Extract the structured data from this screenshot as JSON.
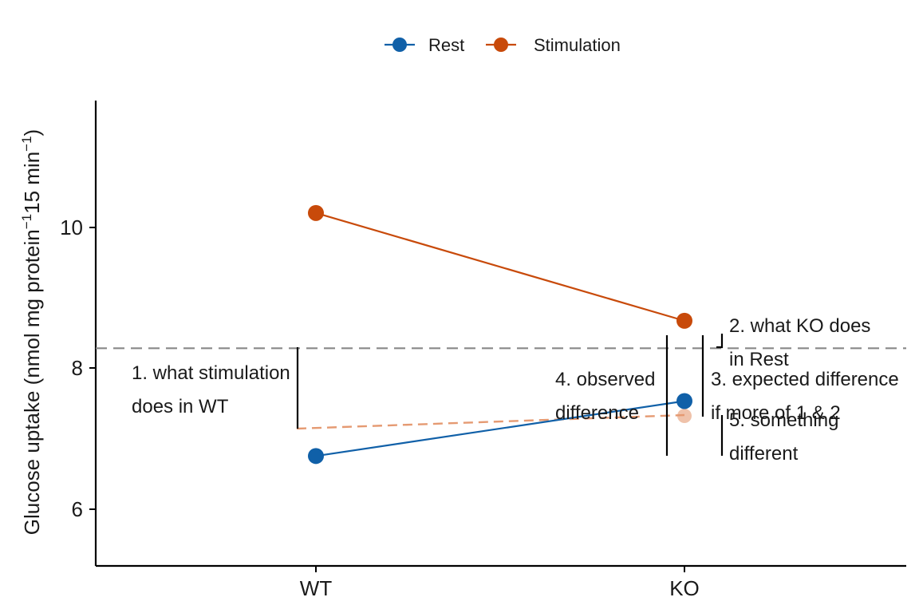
{
  "chart_data": {
    "type": "line",
    "categories": [
      "WT",
      "KO"
    ],
    "ylabel": {
      "prefix": "Glucose uptake (nmol mg protein",
      "sup1": "−1",
      "mid": "15 min",
      "sup2": "−1",
      "suffix": ")"
    },
    "xlabel": "",
    "ylim": [
      5.2,
      11.8
    ],
    "yticks": [
      6,
      8,
      10
    ],
    "ytick_labels": [
      "6",
      "8",
      "10"
    ],
    "grid": false,
    "legend_position": "top",
    "series": [
      {
        "name": "Rest",
        "values": [
          6.75,
          7.53
        ],
        "color": "#1060a8"
      },
      {
        "name": "Stimulation",
        "values": [
          10.2,
          8.67
        ],
        "color": "#c84a0a"
      }
    ],
    "expected": {
      "values": [
        7.13,
        7.32
      ],
      "color": "#e59a72",
      "style": "dashed"
    },
    "reference_line": {
      "y": 8.28,
      "color": "#888888",
      "style": "dashed"
    },
    "annotations": [
      {
        "lines": [
          "1. what stimulation",
          "does in WT"
        ]
      },
      {
        "lines": [
          "2. what KO does",
          "in Rest"
        ]
      },
      {
        "lines": [
          "3. expected difference",
          "if more of 1 & 2"
        ]
      },
      {
        "lines": [
          "4. observed",
          "difference"
        ]
      },
      {
        "lines": [
          "5. something",
          "different"
        ]
      }
    ]
  }
}
